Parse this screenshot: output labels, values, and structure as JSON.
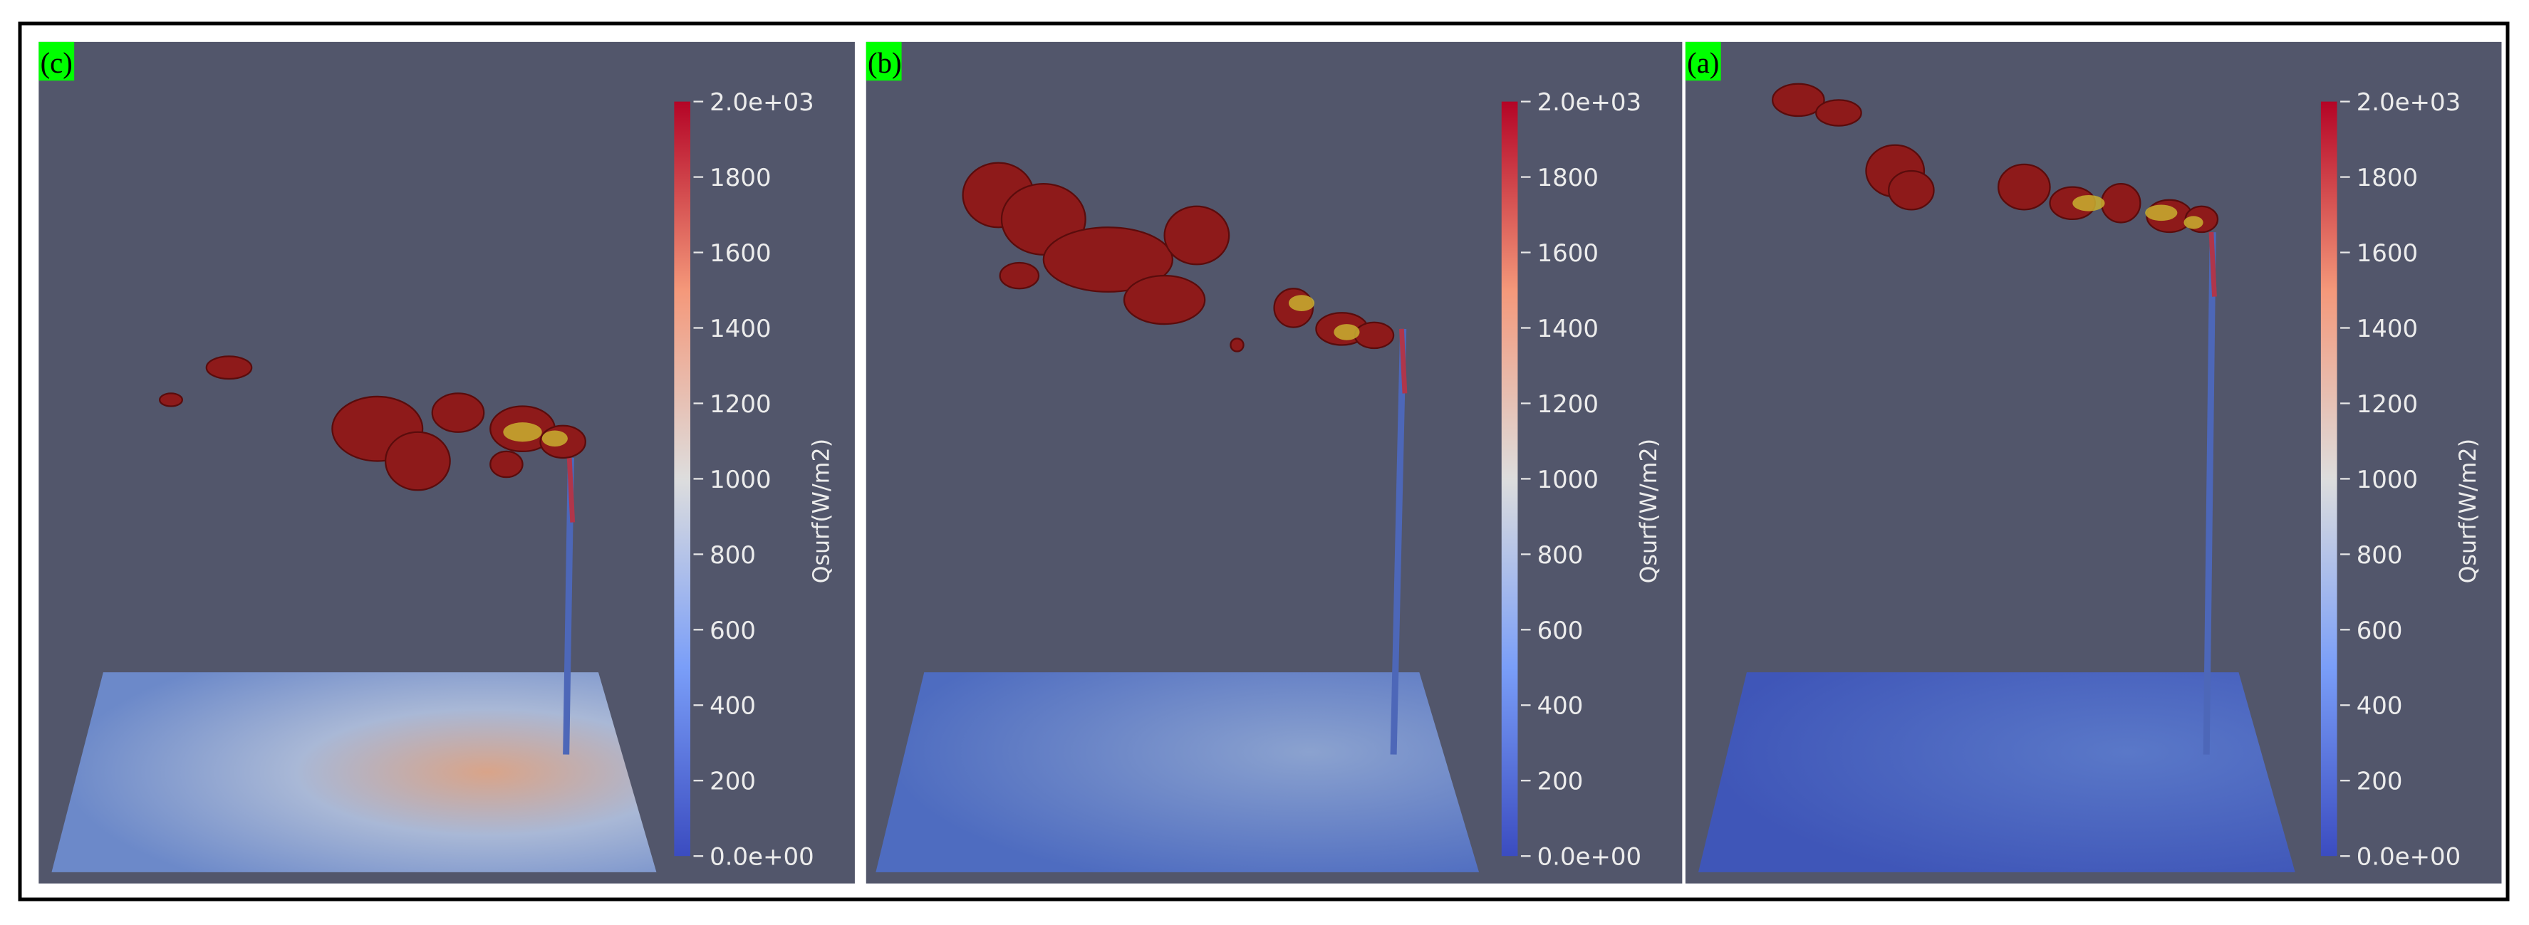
{
  "figure": {
    "panels": [
      {
        "label": "(c)",
        "colorbar": {
          "title": "Qsurf(W/m2)",
          "range": [
            0,
            2000
          ],
          "ticks": [
            {
              "value": 0,
              "label": "0.0e+00"
            },
            200,
            400,
            600,
            800,
            1000,
            1200,
            1400,
            1600,
            1800,
            {
              "value": 2000,
              "label": "2.0e+03"
            }
          ]
        }
      },
      {
        "label": "(b)",
        "colorbar": {
          "title": "Qsurf(W/m2)",
          "range": [
            0,
            2000
          ],
          "ticks": [
            {
              "value": 0,
              "label": "0.0e+00"
            },
            200,
            400,
            600,
            800,
            1000,
            1200,
            1400,
            1600,
            1800,
            {
              "value": 2000,
              "label": "2.0e+03"
            }
          ]
        }
      },
      {
        "label": "(a)",
        "colorbar": {
          "title": "Qsurf(W/m2)",
          "range": [
            0,
            2000
          ],
          "ticks": [
            {
              "value": 0,
              "label": "0.0e+00"
            },
            200,
            400,
            600,
            800,
            1000,
            1200,
            1400,
            1600,
            1800,
            {
              "value": 2000,
              "label": "2.0e+03"
            }
          ]
        }
      }
    ]
  }
}
